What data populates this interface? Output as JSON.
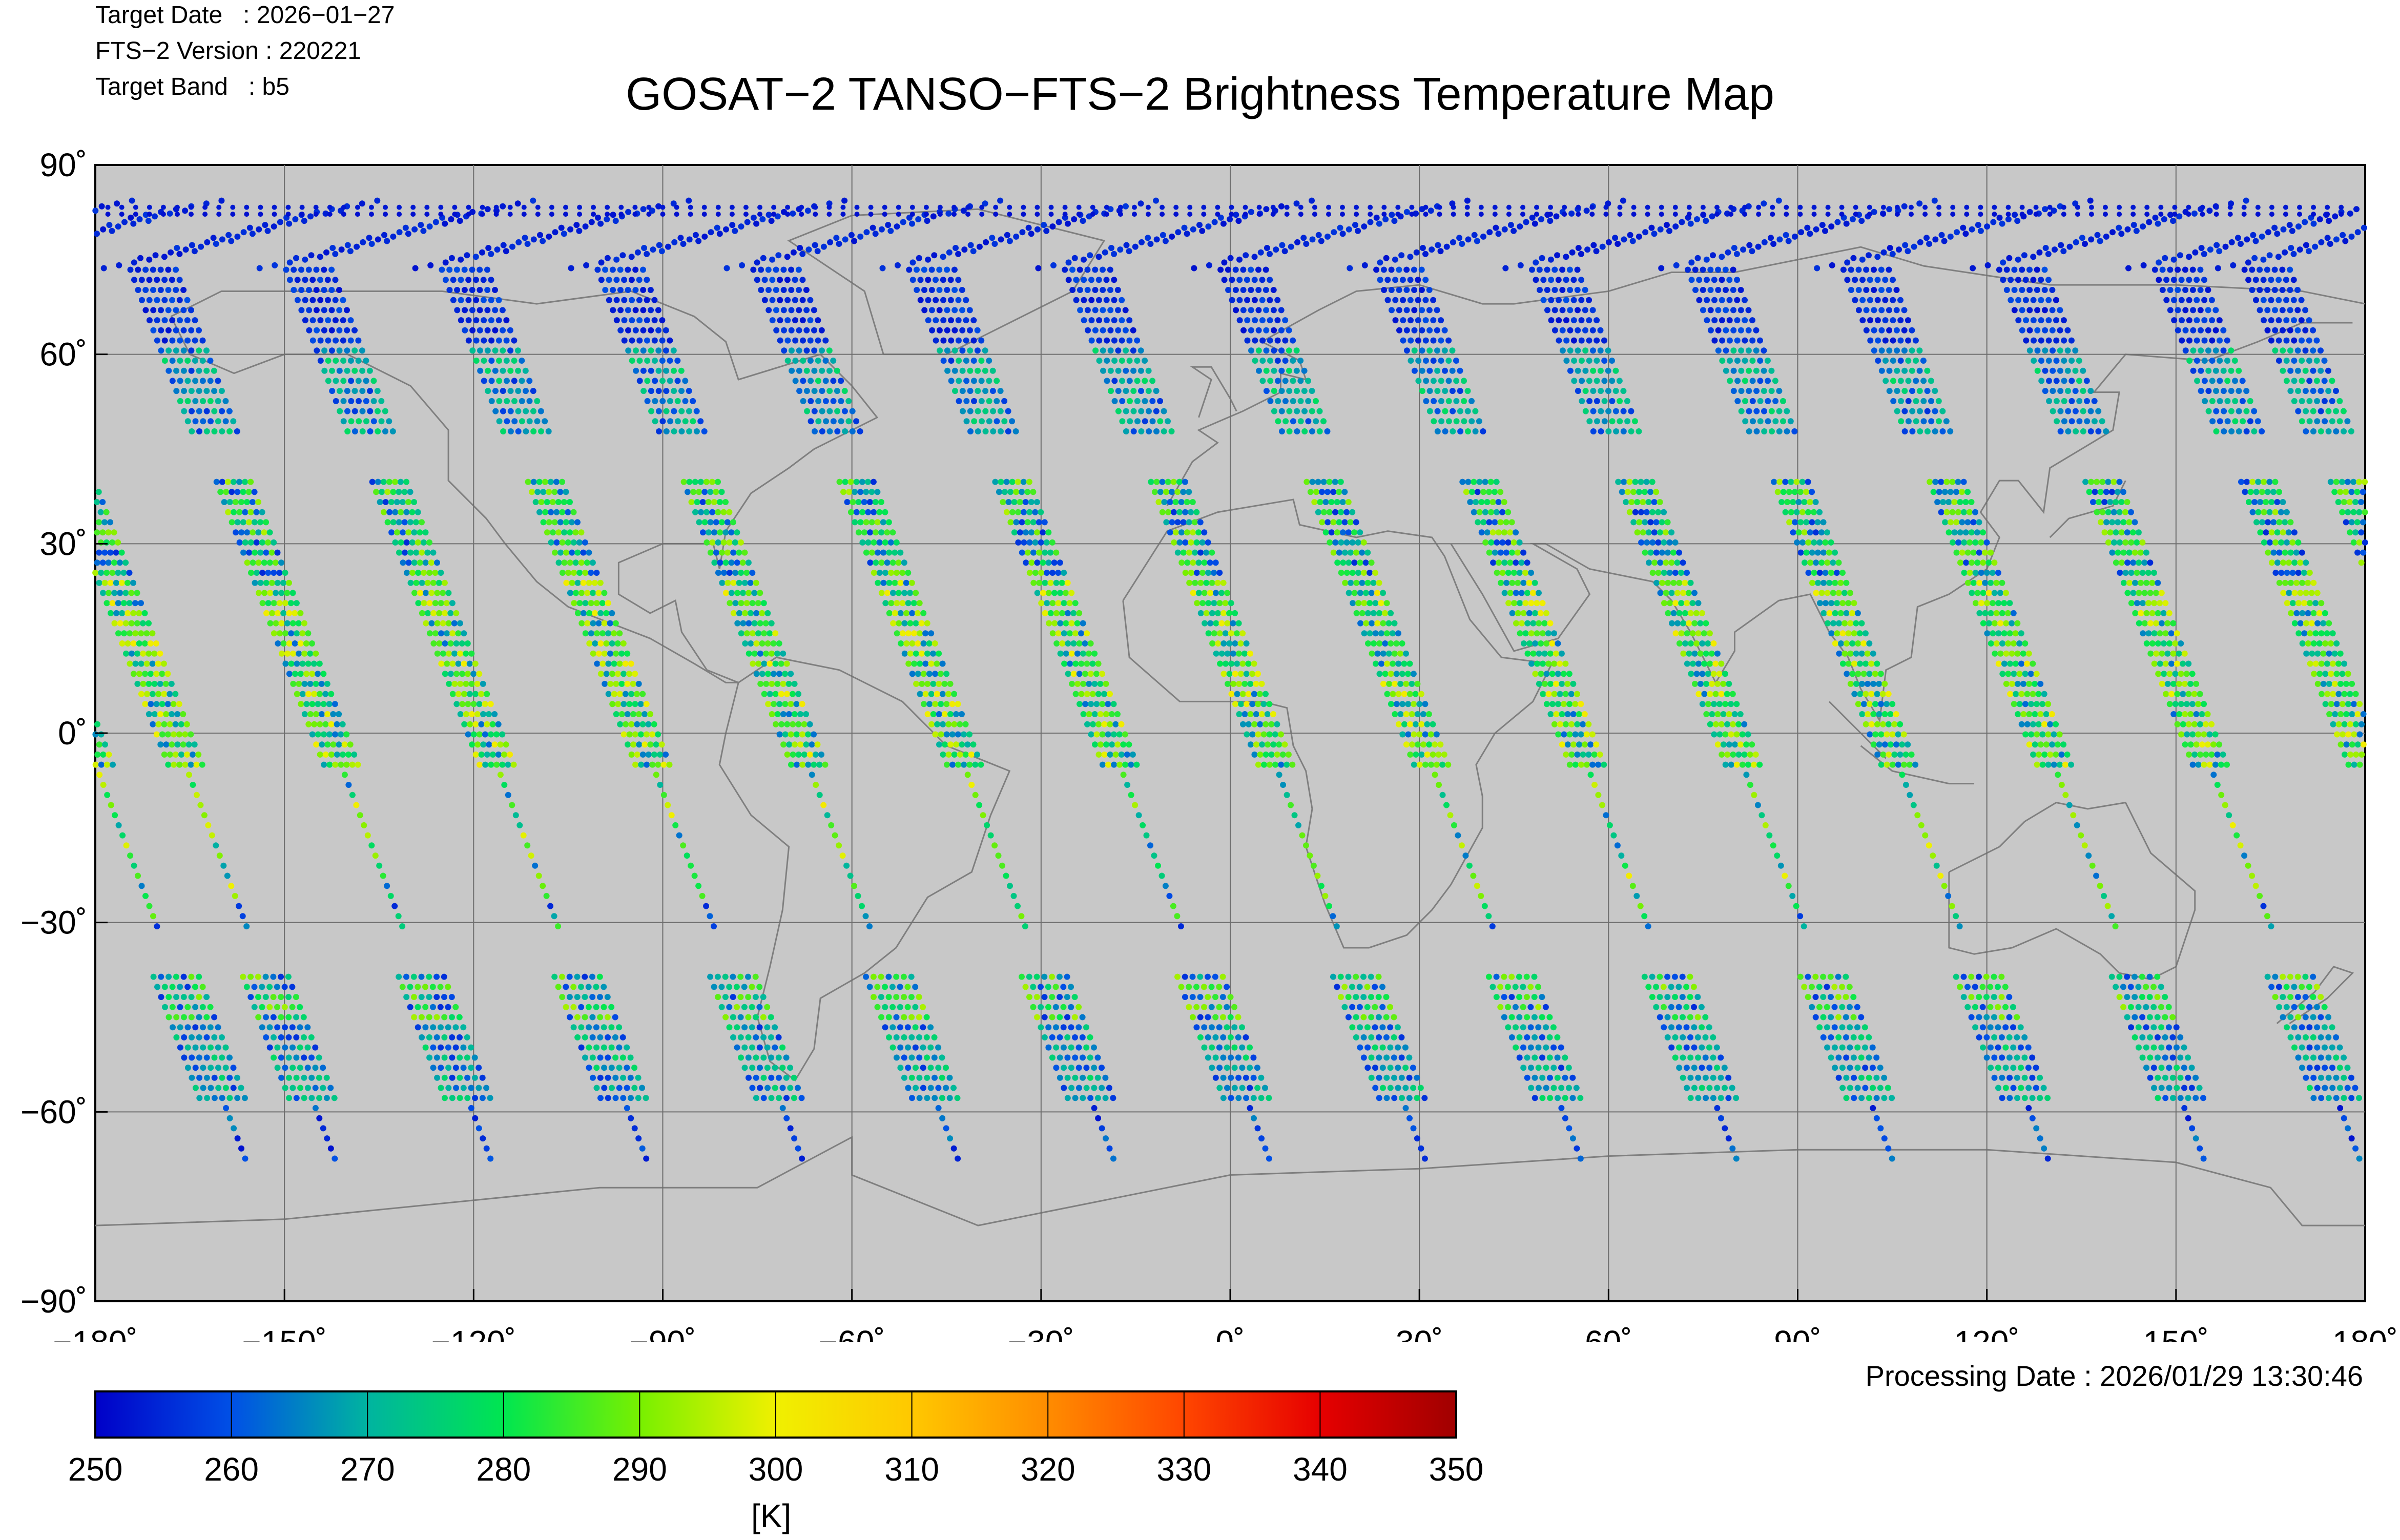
{
  "header": {
    "target_date_label": "Target Date   : 2026−01−27",
    "version_label": "FTS−2 Version : 220221",
    "band_label": "Target Band   : b5",
    "title": "GOSAT−2 TANSO−FTS−2 Brightness Temperature Map"
  },
  "map": {
    "lon_range": [
      -180,
      180
    ],
    "lat_range": [
      -90,
      90
    ],
    "lon_ticks": [
      "−180˚",
      "−150˚",
      "−120˚",
      "−90˚",
      "−60˚",
      "−30˚",
      "0˚",
      "30˚",
      "60˚",
      "90˚",
      "120˚",
      "150˚",
      "180˚"
    ],
    "lat_ticks": [
      "90˚",
      "60˚",
      "30˚",
      "0˚",
      "−30˚",
      "−60˚",
      "−90˚"
    ],
    "grid": true,
    "background_color": "#c8c8c8",
    "coastline_color": "#808080",
    "orbit_track_count": 15,
    "orbit_spacing_deg": 24.7
  },
  "colorbar": {
    "min": 250,
    "max": 350,
    "tick_labels": [
      "250",
      "260",
      "270",
      "280",
      "290",
      "300",
      "310",
      "320",
      "330",
      "340",
      "350"
    ],
    "unit": "[K]",
    "colors": [
      "#0000c8",
      "#0050e6",
      "#00b4a0",
      "#00e650",
      "#78f000",
      "#f0f000",
      "#ffc800",
      "#ff8c00",
      "#ff4600",
      "#e60000",
      "#a00000"
    ]
  },
  "footer": {
    "processing_date": "Processing Date : 2026/01/29 13:30:46"
  }
}
